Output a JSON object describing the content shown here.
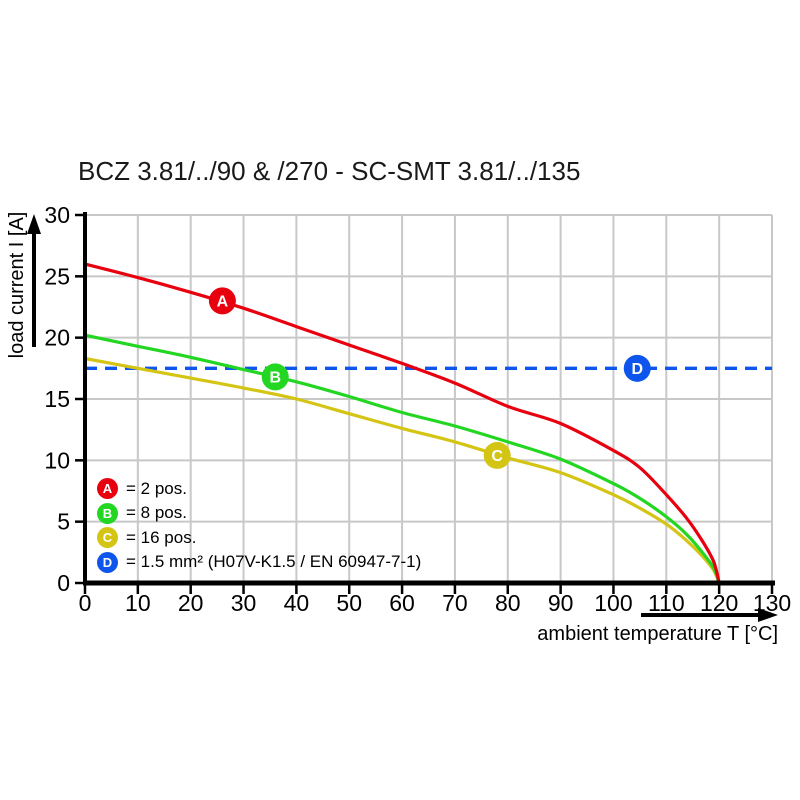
{
  "chart_data": {
    "type": "line",
    "title": "BCZ 3.81/../90 & /270 - SC-SMT 3.81/../135",
    "xlabel": "ambient temperature T [°C]",
    "ylabel": "load current I [A]",
    "xlim": [
      0,
      130
    ],
    "ylim": [
      0,
      30
    ],
    "x_ticks": [
      0,
      10,
      20,
      30,
      40,
      50,
      60,
      70,
      80,
      90,
      100,
      110,
      120,
      130
    ],
    "y_ticks": [
      0,
      5,
      10,
      15,
      20,
      25,
      30
    ],
    "grid": true,
    "legend_position": "inside-bottom-left",
    "colors": {
      "axis": "#000000",
      "grid": "#c8c8c8",
      "text": "#000000"
    },
    "series": [
      {
        "id": "A",
        "name": "2 pos.",
        "legend_label": "= 2 pos.",
        "color": "#e8000f",
        "style": "solid",
        "points": [
          [
            0,
            26
          ],
          [
            10,
            24.9
          ],
          [
            20,
            23.7
          ],
          [
            30,
            22.4
          ],
          [
            40,
            20.9
          ],
          [
            50,
            19.4
          ],
          [
            60,
            17.9
          ],
          [
            70,
            16.3
          ],
          [
            80,
            14.4
          ],
          [
            90,
            13
          ],
          [
            100,
            10.8
          ],
          [
            105,
            9.4
          ],
          [
            110,
            7.2
          ],
          [
            114,
            5.2
          ],
          [
            117,
            3.3
          ],
          [
            119,
            1.7
          ],
          [
            120,
            0
          ]
        ]
      },
      {
        "id": "B",
        "name": "8 pos.",
        "legend_label": "= 8 pos.",
        "color": "#22d622",
        "style": "solid",
        "points": [
          [
            0,
            20.2
          ],
          [
            10,
            19.3
          ],
          [
            20,
            18.4
          ],
          [
            30,
            17.4
          ],
          [
            40,
            16.4
          ],
          [
            50,
            15.2
          ],
          [
            60,
            13.9
          ],
          [
            70,
            12.8
          ],
          [
            80,
            11.5
          ],
          [
            90,
            10.1
          ],
          [
            100,
            8.1
          ],
          [
            105,
            6.9
          ],
          [
            110,
            5.4
          ],
          [
            114,
            3.9
          ],
          [
            117,
            2.4
          ],
          [
            119,
            1.2
          ],
          [
            120,
            0
          ]
        ]
      },
      {
        "id": "C",
        "name": "16 pos.",
        "legend_label": "= 16 pos.",
        "color": "#d4c414",
        "style": "solid",
        "points": [
          [
            0,
            18.3
          ],
          [
            10,
            17.5
          ],
          [
            20,
            16.7
          ],
          [
            30,
            15.9
          ],
          [
            40,
            15
          ],
          [
            50,
            13.8
          ],
          [
            60,
            12.6
          ],
          [
            70,
            11.5
          ],
          [
            80,
            10.2
          ],
          [
            90,
            9
          ],
          [
            100,
            7.2
          ],
          [
            105,
            6.1
          ],
          [
            110,
            4.8
          ],
          [
            114,
            3.4
          ],
          [
            117,
            2.1
          ],
          [
            119,
            1
          ],
          [
            120,
            0
          ]
        ]
      },
      {
        "id": "D",
        "name": "1.5 mm² (H07V-K1.5 / EN 60947-7-1)",
        "legend_label": "= 1.5 mm² (H07V-K1.5 / EN 60947-7-1)",
        "color": "#0d55ec",
        "style": "dashed",
        "points": [
          [
            0,
            17.5
          ],
          [
            130,
            17.5
          ]
        ]
      }
    ],
    "curve_markers": [
      {
        "letter": "A",
        "x": 26,
        "y": 23,
        "color": "#e8000f"
      },
      {
        "letter": "B",
        "x": 36,
        "y": 16.8,
        "color": "#22d622"
      },
      {
        "letter": "C",
        "x": 78,
        "y": 10.4,
        "color": "#d4c414"
      },
      {
        "letter": "D",
        "x": 104.5,
        "y": 17.5,
        "color": "#0d55ec"
      }
    ]
  }
}
